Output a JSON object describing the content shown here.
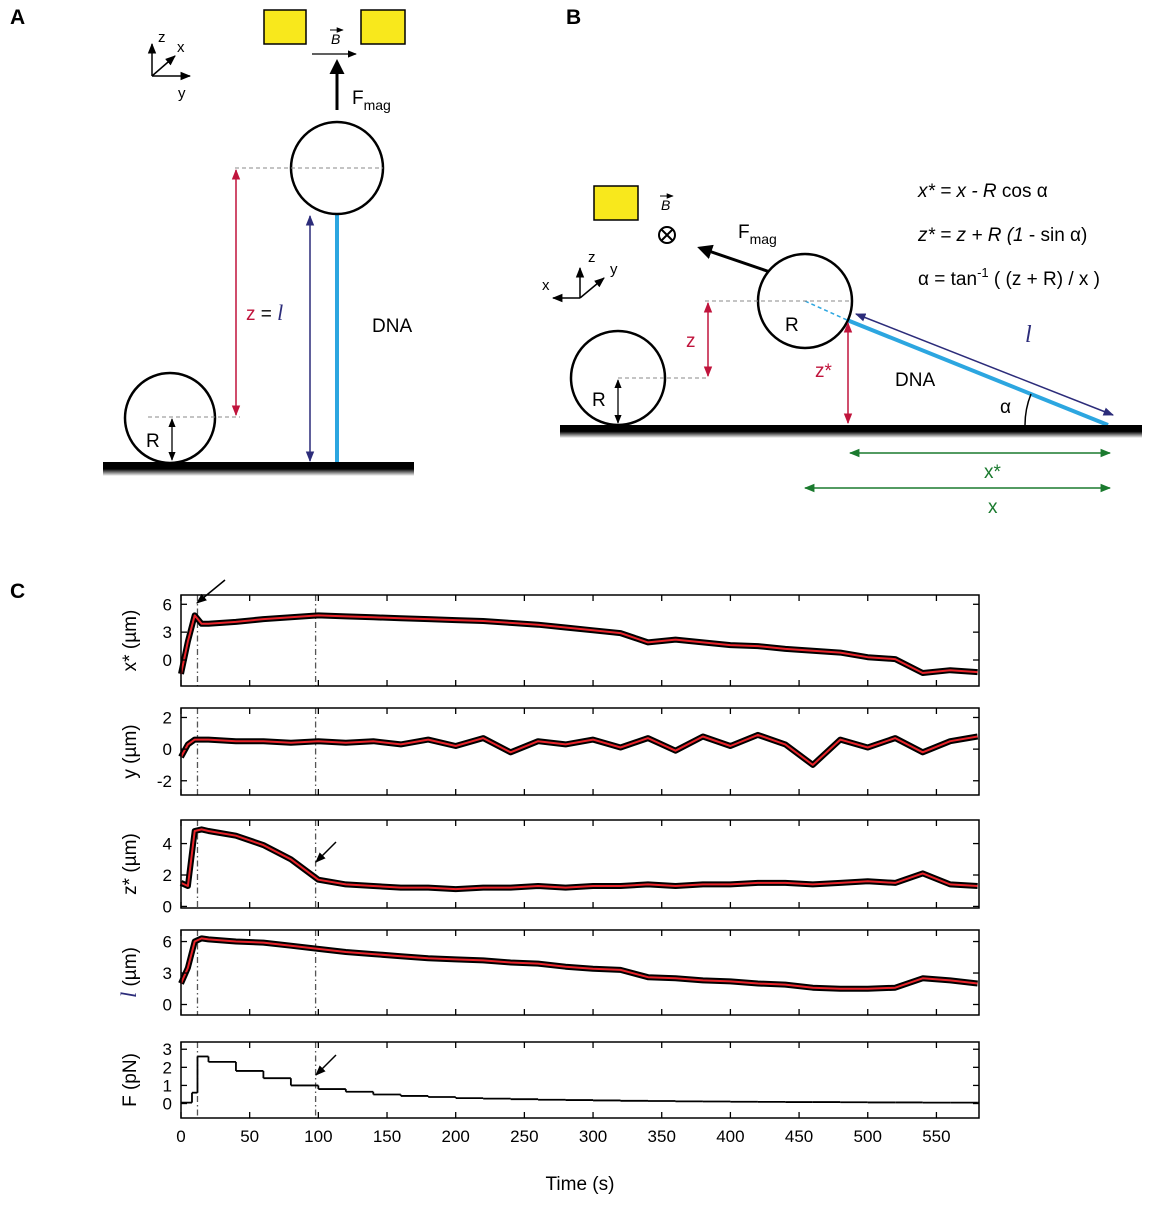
{
  "panel_a": {
    "label": "A",
    "axis_z": "z",
    "axis_x": "x",
    "axis_y": "y",
    "field": "B",
    "force": "F",
    "force_sub": "mag",
    "height_z": "z",
    "height_eq": " = ",
    "height_l": "l",
    "radius": "R",
    "dna": "DNA"
  },
  "panel_b": {
    "label": "B",
    "axis_z": "z",
    "axis_x": "x",
    "axis_y": "y",
    "field": "B",
    "force": "F",
    "force_sub": "mag",
    "eq1": [
      "x* = x - R",
      " cos α"
    ],
    "eq2": [
      "z* = z + R (1",
      " - sin α)"
    ],
    "eq3": [
      "α = tan",
      "-1",
      " ( (z + R) / x )"
    ],
    "z": "z",
    "radius_bead": "R",
    "z_star": "z*",
    "dna": "DNA",
    "length": "l",
    "alpha": "α",
    "x_star": "x*",
    "x": "x",
    "radius_small": "R"
  },
  "panel_c": {
    "label": "C"
  },
  "chart_data": [
    {
      "type": "line",
      "ylabel": [
        "x*",
        " (µm)"
      ],
      "xlim": [
        0,
        581
      ],
      "ylim": [
        -2.8,
        7
      ],
      "yticks": [
        0,
        3,
        6
      ],
      "xticks": [
        0,
        50,
        100,
        150,
        200,
        250,
        300,
        350,
        400,
        450,
        500,
        550
      ],
      "vlines": [
        12,
        98
      ],
      "color": "#e8242a",
      "envelope_color": "#000000",
      "x": [
        0,
        5,
        10,
        15,
        20,
        40,
        60,
        80,
        100,
        120,
        140,
        160,
        180,
        200,
        220,
        240,
        260,
        280,
        300,
        320,
        340,
        360,
        380,
        400,
        420,
        440,
        460,
        480,
        500,
        520,
        540,
        560,
        580
      ],
      "values": [
        -1.5,
        2,
        4.8,
        3.9,
        3.9,
        4.1,
        4.4,
        4.6,
        4.8,
        4.7,
        4.6,
        4.5,
        4.4,
        4.3,
        4.2,
        4.0,
        3.8,
        3.5,
        3.2,
        2.9,
        1.9,
        2.2,
        1.9,
        1.6,
        1.5,
        1.2,
        1.0,
        0.8,
        0.3,
        0.1,
        -1.4,
        -1.1,
        -1.3
      ]
    },
    {
      "type": "line",
      "ylabel": [
        "y",
        " (µm)"
      ],
      "xlim": [
        0,
        581
      ],
      "ylim": [
        -2.9,
        2.6
      ],
      "yticks": [
        -2,
        0,
        2
      ],
      "xticks": [
        0,
        50,
        100,
        150,
        200,
        250,
        300,
        350,
        400,
        450,
        500,
        550
      ],
      "vlines": [
        12,
        98
      ],
      "color": "#e8242a",
      "envelope_color": "#000000",
      "x": [
        0,
        5,
        10,
        15,
        20,
        40,
        60,
        80,
        100,
        120,
        140,
        160,
        180,
        200,
        220,
        240,
        260,
        280,
        300,
        320,
        340,
        360,
        380,
        400,
        420,
        440,
        460,
        480,
        500,
        520,
        540,
        560,
        580
      ],
      "values": [
        -0.5,
        0.3,
        0.6,
        0.6,
        0.6,
        0.5,
        0.5,
        0.4,
        0.5,
        0.4,
        0.5,
        0.3,
        0.6,
        0.2,
        0.7,
        -0.2,
        0.5,
        0.3,
        0.6,
        0.1,
        0.7,
        -0.1,
        0.8,
        0.2,
        0.9,
        0.3,
        -1.0,
        0.6,
        0.1,
        0.7,
        -0.2,
        0.5,
        0.8
      ]
    },
    {
      "type": "line",
      "ylabel": [
        "z*",
        " (µm)"
      ],
      "xlim": [
        0,
        581
      ],
      "ylim": [
        -0.1,
        5.5
      ],
      "yticks": [
        0,
        2,
        4
      ],
      "xticks": [
        0,
        50,
        100,
        150,
        200,
        250,
        300,
        350,
        400,
        450,
        500,
        550
      ],
      "vlines": [
        12,
        98
      ],
      "color": "#e8242a",
      "envelope_color": "#000000",
      "x": [
        0,
        5,
        10,
        15,
        20,
        40,
        60,
        80,
        100,
        120,
        140,
        160,
        180,
        200,
        220,
        240,
        260,
        280,
        300,
        320,
        340,
        360,
        380,
        400,
        420,
        440,
        460,
        480,
        500,
        520,
        540,
        560,
        580
      ],
      "values": [
        1.5,
        1.3,
        4.8,
        4.9,
        4.8,
        4.5,
        3.9,
        3.0,
        1.7,
        1.4,
        1.3,
        1.2,
        1.2,
        1.1,
        1.2,
        1.2,
        1.3,
        1.2,
        1.3,
        1.3,
        1.4,
        1.3,
        1.4,
        1.4,
        1.5,
        1.5,
        1.4,
        1.5,
        1.6,
        1.5,
        2.1,
        1.4,
        1.3
      ]
    },
    {
      "type": "line",
      "ylabel": [
        "l",
        " (µm)"
      ],
      "ylabel_symbol_color": "#2c2c7a",
      "ylabel_symbol_style": "italic",
      "xlim": [
        0,
        581
      ],
      "ylim": [
        -1,
        7.1
      ],
      "yticks": [
        0,
        3,
        6
      ],
      "xticks": [
        0,
        50,
        100,
        150,
        200,
        250,
        300,
        350,
        400,
        450,
        500,
        550
      ],
      "vlines": [
        12,
        98
      ],
      "color": "#e8242a",
      "envelope_color": "#000000",
      "x": [
        0,
        5,
        10,
        15,
        20,
        40,
        60,
        80,
        100,
        120,
        140,
        160,
        180,
        200,
        220,
        240,
        260,
        280,
        300,
        320,
        340,
        360,
        380,
        400,
        420,
        440,
        460,
        480,
        500,
        520,
        540,
        560,
        580
      ],
      "values": [
        2,
        3.5,
        6,
        6.3,
        6.2,
        6.0,
        5.9,
        5.6,
        5.3,
        5.0,
        4.8,
        4.6,
        4.4,
        4.3,
        4.2,
        4.0,
        3.9,
        3.6,
        3.4,
        3.3,
        2.6,
        2.5,
        2.3,
        2.2,
        2.0,
        1.9,
        1.6,
        1.5,
        1.5,
        1.6,
        2.5,
        2.3,
        2.0
      ]
    },
    {
      "type": "step",
      "ylabel": [
        "F",
        " (pN)"
      ],
      "xlabel": "Time (s)",
      "xlim": [
        0,
        581
      ],
      "ylim": [
        -0.8,
        3.4
      ],
      "yticks": [
        0,
        1,
        2,
        3
      ],
      "xticks": [
        0,
        50,
        100,
        150,
        200,
        250,
        300,
        350,
        400,
        450,
        500,
        550
      ],
      "vlines": [
        12,
        98
      ],
      "color": "#000000",
      "x": [
        0,
        8,
        12,
        20,
        40,
        60,
        80,
        100,
        120,
        140,
        160,
        180,
        200,
        220,
        240,
        260,
        280,
        300,
        320,
        340,
        360,
        380,
        400,
        420,
        440,
        460,
        480,
        500,
        520,
        540,
        560,
        580
      ],
      "values": [
        0.05,
        0.6,
        2.6,
        2.3,
        1.8,
        1.4,
        1.0,
        0.8,
        0.65,
        0.5,
        0.42,
        0.36,
        0.3,
        0.27,
        0.24,
        0.21,
        0.19,
        0.17,
        0.15,
        0.14,
        0.12,
        0.11,
        0.1,
        0.09,
        0.08,
        0.08,
        0.07,
        0.06,
        0.06,
        0.05,
        0.05,
        0.05
      ]
    }
  ]
}
